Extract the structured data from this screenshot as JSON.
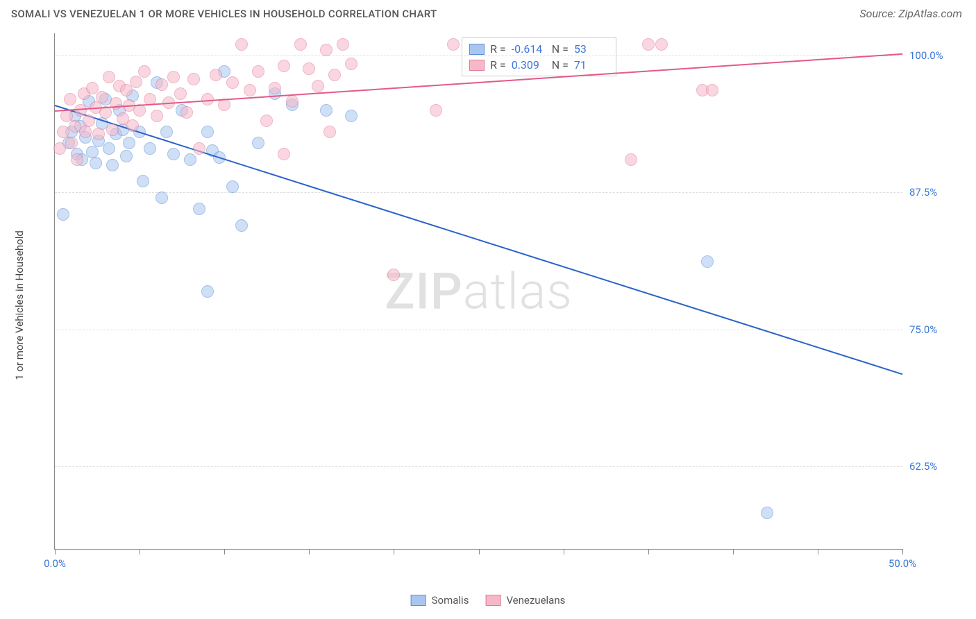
{
  "header": {
    "title": "SOMALI VS VENEZUELAN 1 OR MORE VEHICLES IN HOUSEHOLD CORRELATION CHART",
    "source": "Source: ZipAtlas.com",
    "title_fontsize": 15,
    "title_color": "#555555",
    "source_color": "#666666"
  },
  "watermark": {
    "text_bold": "ZIP",
    "text_light": "atlas"
  },
  "chart": {
    "type": "scatter",
    "background_color": "#ffffff",
    "grid_color": "#dddddd",
    "axis_color": "#888888",
    "xlim": [
      0,
      50
    ],
    "ylim": [
      55,
      102
    ],
    "xticks": [
      0,
      5,
      10,
      15,
      20,
      25,
      30,
      35,
      40,
      45,
      50
    ],
    "xtick_labels": {
      "0": "0.0%",
      "50": "50.0%"
    },
    "yticks": [
      62.5,
      75.0,
      87.5,
      100.0
    ],
    "ytick_labels": [
      "62.5%",
      "75.0%",
      "87.5%",
      "100.0%"
    ],
    "ylabel": "1 or more Vehicles in Household",
    "label_fontsize": 15,
    "tick_label_color": "#3b78d8",
    "marker_radius": 9,
    "marker_opacity": 0.55,
    "series": [
      {
        "name": "Somalis",
        "color_fill": "#a8c6f0",
        "color_stroke": "#5a8fd6",
        "trend_color": "#2a62c9",
        "R": "-0.614",
        "N": "53",
        "trend": {
          "x1": 0,
          "y1": 95.5,
          "x2": 50,
          "y2": 71.0
        },
        "points": [
          [
            0.5,
            85.5
          ],
          [
            0.8,
            92
          ],
          [
            1.0,
            93
          ],
          [
            1.2,
            94.5
          ],
          [
            1.3,
            91
          ],
          [
            1.5,
            93.5
          ],
          [
            1.6,
            90.5
          ],
          [
            1.8,
            92.5
          ],
          [
            2.0,
            95.8
          ],
          [
            2.2,
            91.2
          ],
          [
            2.4,
            90.2
          ],
          [
            2.6,
            92.2
          ],
          [
            2.8,
            93.8
          ],
          [
            3.0,
            96
          ],
          [
            3.2,
            91.5
          ],
          [
            3.4,
            90
          ],
          [
            3.6,
            92.8
          ],
          [
            3.8,
            95
          ],
          [
            4.0,
            93.2
          ],
          [
            4.2,
            90.8
          ],
          [
            4.4,
            92
          ],
          [
            4.6,
            96.3
          ],
          [
            5.0,
            93
          ],
          [
            5.2,
            88.5
          ],
          [
            5.6,
            91.5
          ],
          [
            6.0,
            97.5
          ],
          [
            6.3,
            87
          ],
          [
            6.6,
            93
          ],
          [
            7.0,
            91
          ],
          [
            7.5,
            95
          ],
          [
            8.0,
            90.5
          ],
          [
            8.5,
            86
          ],
          [
            9.0,
            93
          ],
          [
            9.3,
            91.3
          ],
          [
            9.7,
            90.7
          ],
          [
            10.0,
            98.5
          ],
          [
            10.5,
            88
          ],
          [
            11.0,
            84.5
          ],
          [
            9.0,
            78.5
          ],
          [
            12.0,
            92
          ],
          [
            13.0,
            96.5
          ],
          [
            14.0,
            95.5
          ],
          [
            16.0,
            95
          ],
          [
            17.5,
            94.5
          ],
          [
            38.5,
            81.2
          ],
          [
            42.0,
            58.3
          ]
        ]
      },
      {
        "name": "Venezuelans",
        "color_fill": "#f6b8c8",
        "color_stroke": "#e07a9a",
        "trend_color": "#e35a87",
        "R": "0.309",
        "N": "71",
        "trend": {
          "x1": 0,
          "y1": 95.0,
          "x2": 50,
          "y2": 100.2
        },
        "points": [
          [
            0.3,
            91.5
          ],
          [
            0.5,
            93
          ],
          [
            0.7,
            94.5
          ],
          [
            0.9,
            96
          ],
          [
            1.0,
            92
          ],
          [
            1.2,
            93.5
          ],
          [
            1.3,
            90.5
          ],
          [
            1.5,
            95
          ],
          [
            1.7,
            96.5
          ],
          [
            1.8,
            93
          ],
          [
            2.0,
            94
          ],
          [
            2.2,
            97
          ],
          [
            2.4,
            95.2
          ],
          [
            2.6,
            92.8
          ],
          [
            2.8,
            96.2
          ],
          [
            3.0,
            94.8
          ],
          [
            3.2,
            98
          ],
          [
            3.4,
            93.2
          ],
          [
            3.6,
            95.6
          ],
          [
            3.8,
            97.2
          ],
          [
            4.0,
            94.2
          ],
          [
            4.2,
            96.8
          ],
          [
            4.4,
            95.4
          ],
          [
            4.6,
            93.6
          ],
          [
            4.8,
            97.6
          ],
          [
            5.0,
            95
          ],
          [
            5.3,
            98.5
          ],
          [
            5.6,
            96
          ],
          [
            6.0,
            94.5
          ],
          [
            6.3,
            97.3
          ],
          [
            6.7,
            95.7
          ],
          [
            7.0,
            98
          ],
          [
            7.4,
            96.5
          ],
          [
            7.8,
            94.8
          ],
          [
            8.2,
            97.8
          ],
          [
            8.5,
            91.5
          ],
          [
            9.0,
            96
          ],
          [
            9.5,
            98.2
          ],
          [
            10.0,
            95.5
          ],
          [
            10.5,
            97.5
          ],
          [
            11.0,
            101
          ],
          [
            11.5,
            96.8
          ],
          [
            12.0,
            98.5
          ],
          [
            12.5,
            94
          ],
          [
            13.0,
            97
          ],
          [
            13.5,
            99
          ],
          [
            14.0,
            95.8
          ],
          [
            14.5,
            101
          ],
          [
            15.0,
            98.8
          ],
          [
            15.5,
            97.2
          ],
          [
            16.0,
            100.5
          ],
          [
            16.5,
            98.2
          ],
          [
            17.0,
            101
          ],
          [
            17.5,
            99.2
          ],
          [
            16.2,
            93
          ],
          [
            13.5,
            91
          ],
          [
            22.5,
            95
          ],
          [
            20.0,
            80
          ],
          [
            23.5,
            101
          ],
          [
            34.0,
            90.5
          ],
          [
            35.0,
            101
          ],
          [
            35.8,
            101
          ],
          [
            38.2,
            96.8
          ],
          [
            38.8,
            96.8
          ]
        ]
      }
    ]
  },
  "legend_bottom": [
    {
      "label": "Somalis",
      "fill": "#a8c6f0",
      "stroke": "#5a8fd6"
    },
    {
      "label": "Venezuelans",
      "fill": "#f6b8c8",
      "stroke": "#e07a9a"
    }
  ]
}
